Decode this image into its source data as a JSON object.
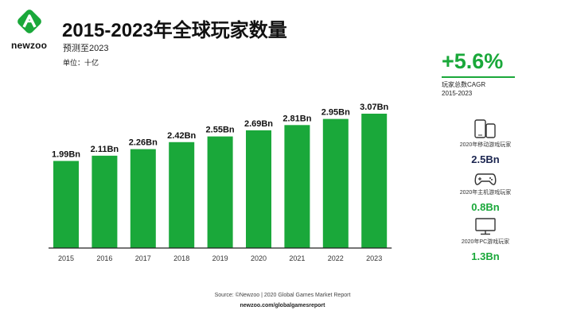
{
  "brand": {
    "name": "newzoo",
    "color": "#1aa83a"
  },
  "header": {
    "title": "2015-2023年全球玩家数量",
    "subtitle": "预测至2023",
    "unit": "单位：十亿"
  },
  "chart_data": {
    "type": "bar",
    "categories": [
      "2015",
      "2016",
      "2017",
      "2018",
      "2019",
      "2020",
      "2021",
      "2022",
      "2023"
    ],
    "values": [
      1.99,
      2.11,
      2.26,
      2.42,
      2.55,
      2.69,
      2.81,
      2.95,
      3.07
    ],
    "value_labels": [
      "1.99Bn",
      "2.11Bn",
      "2.26Bn",
      "2.42Bn",
      "2.55Bn",
      "2.69Bn",
      "2.81Bn",
      "2.95Bn",
      "3.07Bn"
    ],
    "title": "2015-2023年全球玩家数量",
    "subtitle": "预测至2023",
    "xlabel": "",
    "ylabel": "单位：十亿",
    "ylim": [
      0,
      3.6
    ],
    "bar_color": "#1aa83a",
    "grid": false,
    "legend": "none"
  },
  "sidebar": {
    "cagr_value": "+5.6%",
    "cagr_label_1": "玩家总数CAGR",
    "cagr_label_2": "2015-2023",
    "stats": [
      {
        "icon": "mobile-devices-icon",
        "label": "2020年移动游戏玩家",
        "value": "2.5Bn",
        "color": "#1b2550"
      },
      {
        "icon": "gamepad-icon",
        "label": "2020年主机游戏玩家",
        "value": "0.8Bn",
        "color": "#1aa83a"
      },
      {
        "icon": "monitor-icon",
        "label": "2020年PC游戏玩家",
        "value": "1.3Bn",
        "color": "#1aa83a"
      }
    ]
  },
  "footer": {
    "source": "Source: ©Newzoo | 2020 Global Games Market Report",
    "url": "newzoo.com/globalgamesreport"
  }
}
